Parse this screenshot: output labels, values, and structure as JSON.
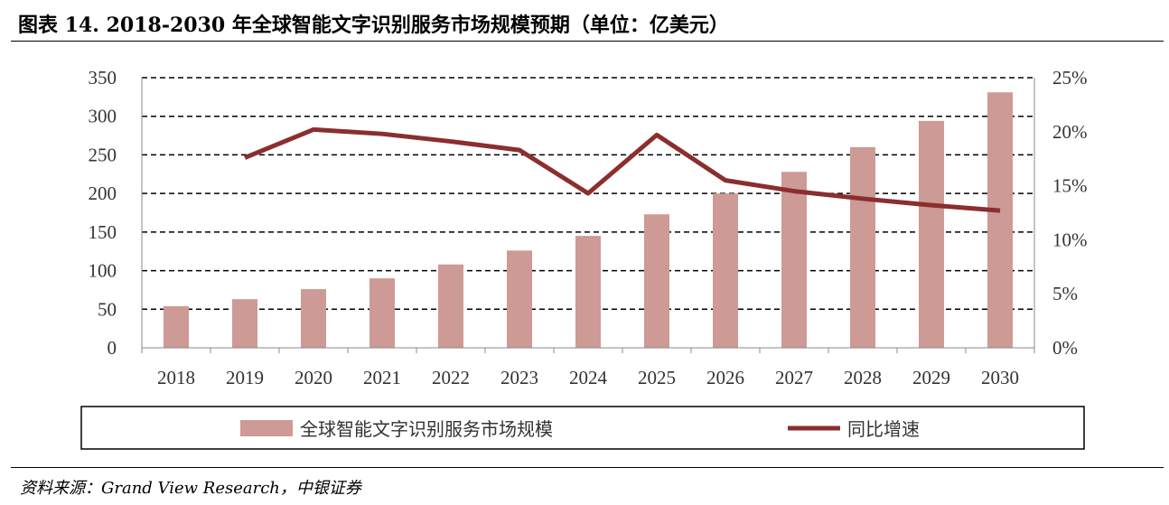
{
  "title": "图表 14. 2018-2030 年全球智能文字识别服务市场规模预期（单位：亿美元）",
  "source": "资料来源：Grand View Research，中银证券",
  "chart_data": {
    "type": "bar+line",
    "categories": [
      "2018",
      "2019",
      "2020",
      "2021",
      "2022",
      "2023",
      "2024",
      "2025",
      "2026",
      "2027",
      "2028",
      "2029",
      "2030"
    ],
    "series": [
      {
        "name": "全球智能文字识别服务市场规模",
        "type": "bar",
        "axis": "left",
        "color": "#cd9a95",
        "values": [
          54,
          63,
          76,
          90,
          108,
          126,
          145,
          173,
          200,
          228,
          260,
          294,
          331
        ]
      },
      {
        "name": "同比增速",
        "type": "line",
        "axis": "right",
        "color": "#8b2e2e",
        "values": [
          null,
          17.6,
          20.2,
          19.8,
          19.1,
          18.3,
          14.3,
          19.7,
          15.5,
          14.5,
          13.8,
          13.2,
          12.7
        ]
      }
    ],
    "left_axis": {
      "ylim": [
        0,
        350
      ],
      "ticks": [
        "0",
        "50",
        "100",
        "150",
        "200",
        "250",
        "300",
        "350"
      ]
    },
    "right_axis": {
      "ylim": [
        0,
        25
      ],
      "ticks": [
        "0%",
        "5%",
        "10%",
        "15%",
        "20%",
        "25%"
      ]
    },
    "grid": "dashed horizontal",
    "legend_position": "bottom"
  }
}
